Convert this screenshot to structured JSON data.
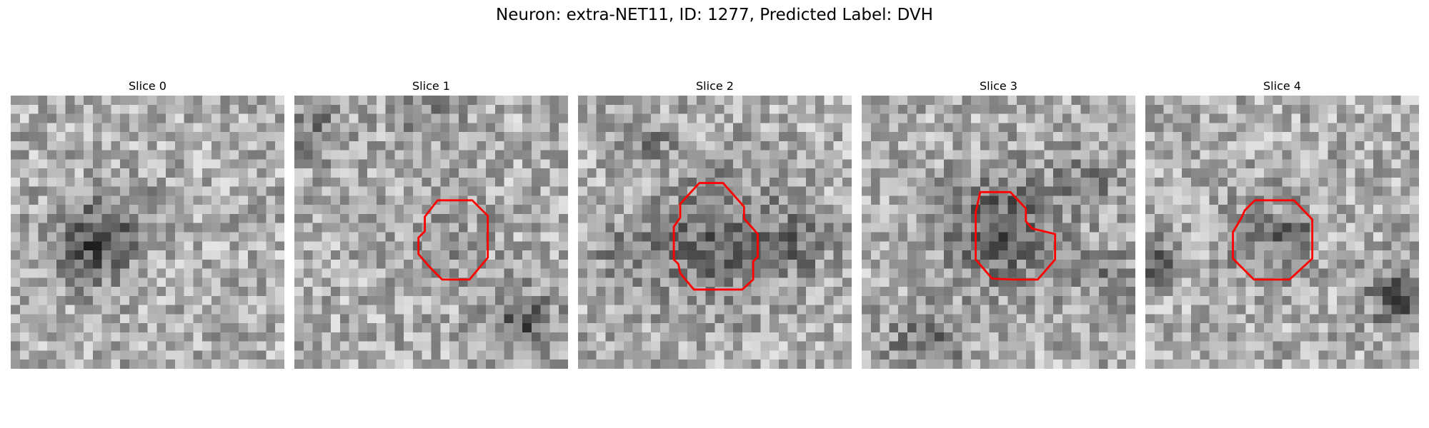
{
  "figure": {
    "title": "Neuron: extra-NET11, ID: 1277, Predicted Label: DVH"
  },
  "colors": {
    "background": "#ffffff",
    "contour": "#ff0000",
    "colormap": "gray"
  },
  "panels": [
    {
      "title": "Slice 0",
      "has_contour": false,
      "seed": 11,
      "spot": "dark blob centre-left"
    },
    {
      "title": "Slice 1",
      "has_contour": true,
      "seed": 23,
      "spot": "faint cell inside contour"
    },
    {
      "title": "Slice 2",
      "has_contour": true,
      "seed": 37,
      "spot": "dark ring inside contour"
    },
    {
      "title": "Slice 3",
      "has_contour": true,
      "seed": 53,
      "spot": "dark cell inside contour"
    },
    {
      "title": "Slice 4",
      "has_contour": true,
      "seed": 71,
      "spot": "small dark spots inside contour"
    }
  ]
}
